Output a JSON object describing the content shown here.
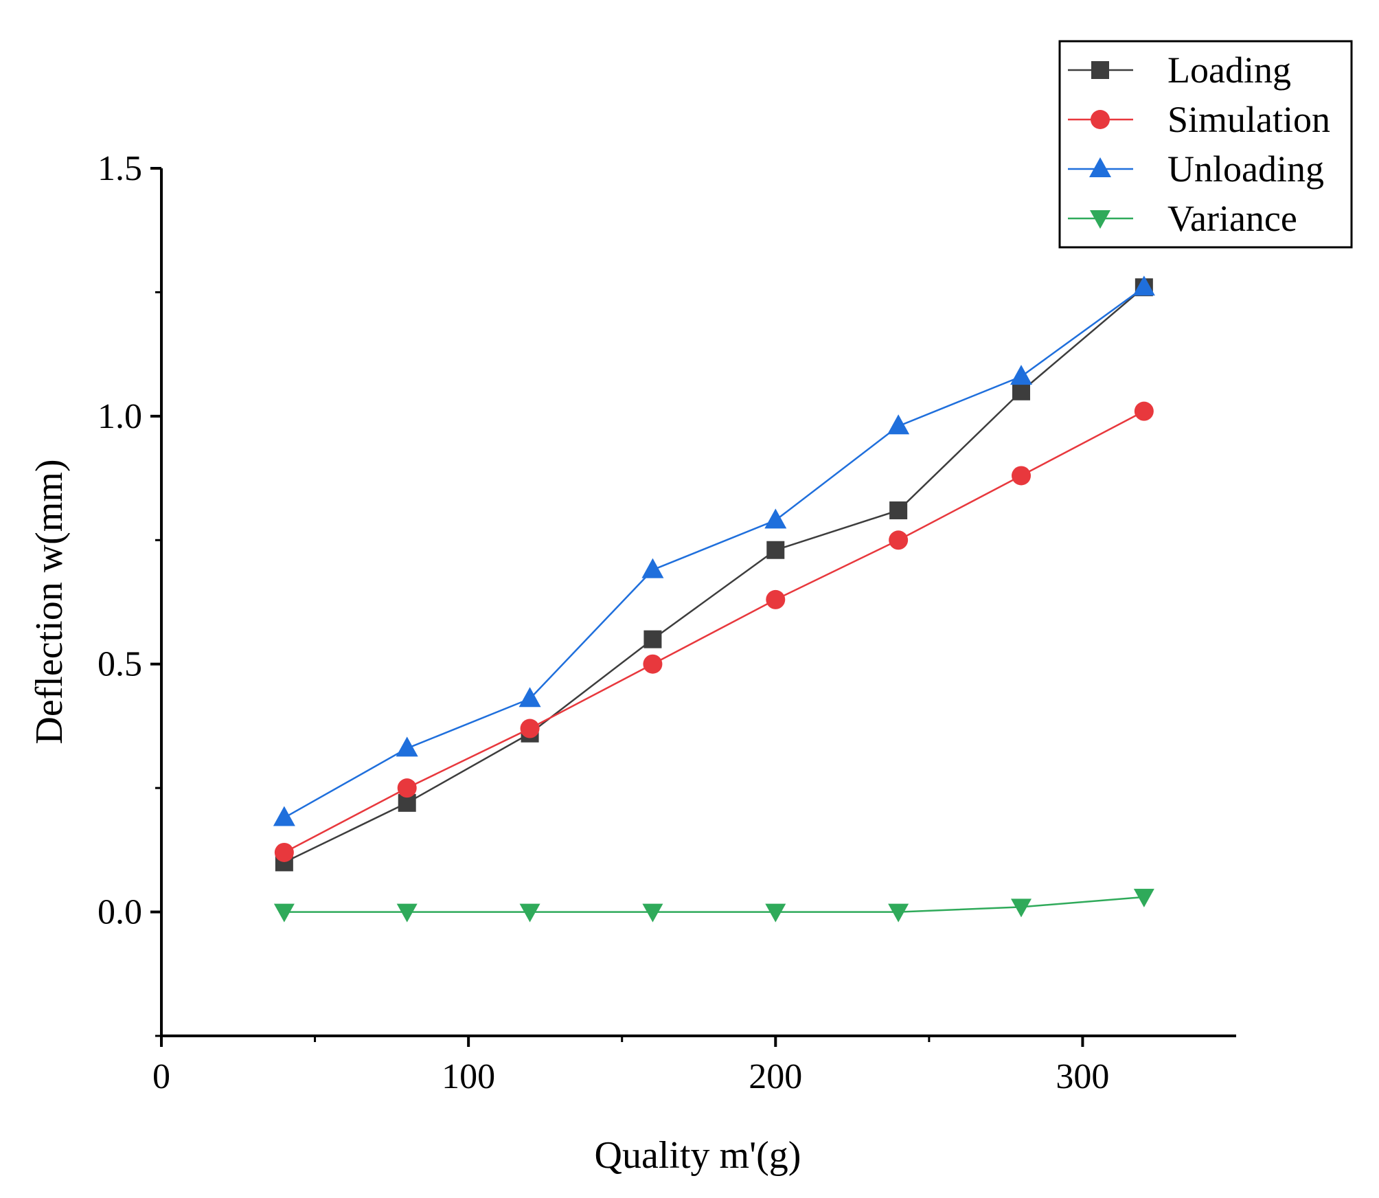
{
  "chart_data": {
    "type": "line",
    "title": "",
    "xlabel": "Quality m'(g)",
    "ylabel": "Deflection w(mm)",
    "xlim": [
      0,
      350
    ],
    "ylim": [
      -0.25,
      1.5
    ],
    "xticks": [
      0,
      100,
      200,
      300
    ],
    "xtick_labels": [
      "0",
      "100",
      "200",
      "300"
    ],
    "yticks": [
      0.0,
      0.5,
      1.0,
      1.5
    ],
    "ytick_labels": [
      "0.0",
      "0.5",
      "1.0",
      "1.5"
    ],
    "grid": false,
    "legend_position": "top-right",
    "x": [
      40,
      80,
      120,
      160,
      200,
      240,
      280,
      320
    ],
    "series": [
      {
        "name": "Loading",
        "color": "#3d3d3d",
        "marker": "square",
        "values": [
          0.1,
          0.22,
          0.36,
          0.55,
          0.73,
          0.81,
          1.05,
          1.26
        ]
      },
      {
        "name": "Simulation",
        "color": "#e8383d",
        "marker": "circle",
        "values": [
          0.12,
          0.25,
          0.37,
          0.5,
          0.63,
          0.75,
          0.88,
          1.01
        ]
      },
      {
        "name": "Unloading",
        "color": "#1f6fdc",
        "marker": "triangle-up",
        "values": [
          0.19,
          0.33,
          0.43,
          0.69,
          0.79,
          0.98,
          1.08,
          1.26
        ]
      },
      {
        "name": "Variance",
        "color": "#2faa5a",
        "marker": "triangle-down",
        "values": [
          0.0,
          0.0,
          0.0,
          0.0,
          0.0,
          0.0,
          0.01,
          0.03
        ]
      }
    ]
  }
}
